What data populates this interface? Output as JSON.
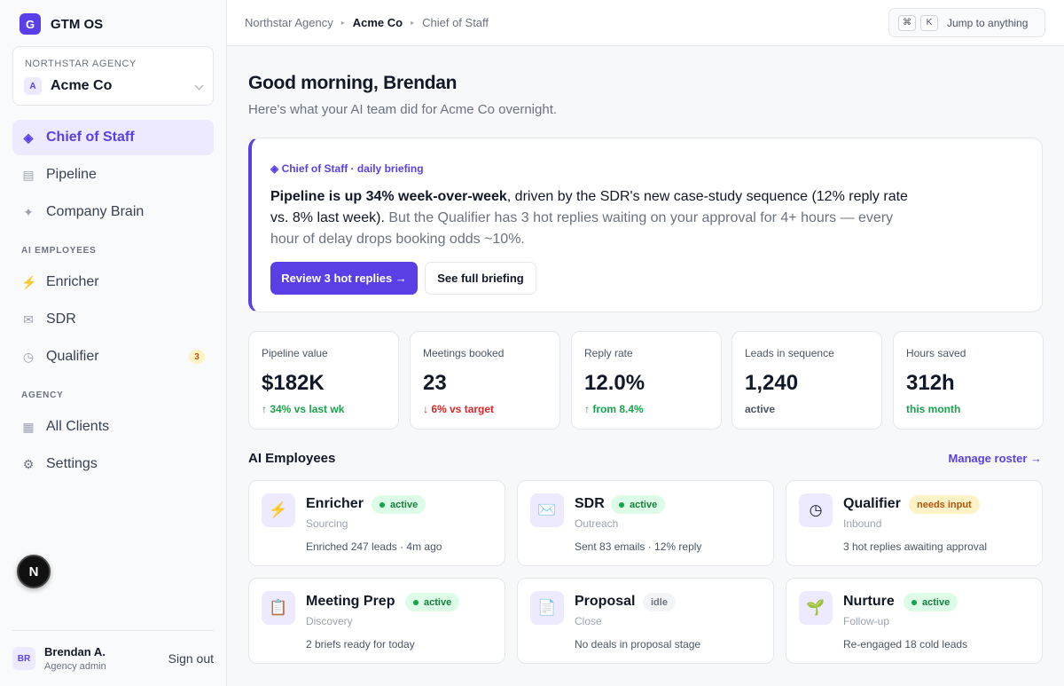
{
  "sidebar": {
    "logo_letter": "G",
    "app_name": "GTM OS",
    "client": {
      "org": "NORTHSTAR AGENCY",
      "avatar": "A",
      "name": "Acme Co"
    },
    "nav_primary": [
      {
        "label": "Chief of Staff",
        "icon": "diamond-icon",
        "glyph": "◈",
        "active": true
      },
      {
        "label": "Pipeline",
        "icon": "list-icon",
        "glyph": "▤"
      },
      {
        "label": "Company Brain",
        "icon": "sparkle-icon",
        "glyph": "✦"
      }
    ],
    "section_ai": "AI EMPLOYEES",
    "nav_ai": [
      {
        "label": "Enricher",
        "icon": "lightning-icon",
        "glyph": "⚡"
      },
      {
        "label": "SDR",
        "icon": "envelope-icon",
        "glyph": "✉"
      },
      {
        "label": "Qualifier",
        "icon": "clock-icon",
        "glyph": "◷",
        "badge": "3"
      }
    ],
    "section_agency": "AGENCY",
    "nav_agency": [
      {
        "label": "All Clients",
        "icon": "grid-icon",
        "glyph": "▦"
      },
      {
        "label": "Settings",
        "icon": "gear-icon",
        "glyph": "⚙"
      }
    ],
    "floating_letter": "N",
    "user": {
      "initials": "BR",
      "name": "Brendan A.",
      "role": "Agency admin",
      "signout": "Sign out"
    }
  },
  "header": {
    "breadcrumbs": [
      "Northstar Agency",
      "Acme Co",
      "Chief of Staff"
    ],
    "jump": {
      "key1": "⌘",
      "key2": "K",
      "label": "Jump to anything"
    }
  },
  "main": {
    "greeting": "Good morning, Brendan",
    "subgreeting": "Here's what your AI team did for Acme Co overnight.",
    "briefing": {
      "tag": "◈ Chief of Staff · daily briefing",
      "headline": "Pipeline is up 34% week-over-week",
      "text_mid": ", driven by the SDR's new case-study sequence (12% reply rate vs. 8% last week).",
      "text_muted": " But the Qualifier has 3 hot replies waiting on your approval for 4+ hours — every hour of delay drops booking odds ~10%.",
      "primary_button": "Review 3 hot replies →",
      "secondary_button": "See full briefing"
    },
    "stats": [
      {
        "label": "Pipeline value",
        "value": "$182K",
        "delta": "↑ 34% vs last wk",
        "tone": "pos"
      },
      {
        "label": "Meetings booked",
        "value": "23",
        "delta": "↓ 6% vs target",
        "tone": "neg"
      },
      {
        "label": "Reply rate",
        "value": "12.0%",
        "delta": "↑ from 8.4%",
        "tone": "pos"
      },
      {
        "label": "Leads in sequence",
        "value": "1,240",
        "delta": "active",
        "tone": "neu"
      },
      {
        "label": "Hours saved",
        "value": "312h",
        "delta": "this month",
        "tone": "pos"
      }
    ],
    "employees_title": "AI Employees",
    "manage_link": "Manage roster →",
    "employees": [
      {
        "name": "Enricher",
        "role": "Sourcing",
        "detail": "Enriched 247 leads · 4m ago",
        "status": "active",
        "status_kind": "active",
        "icon": "lightning-icon",
        "glyph": "⚡"
      },
      {
        "name": "SDR",
        "role": "Outreach",
        "detail": "Sent 83 emails · 12% reply",
        "status": "active",
        "status_kind": "active",
        "icon": "envelope-icon",
        "glyph": "✉️"
      },
      {
        "name": "Qualifier",
        "role": "Inbound",
        "detail": "3 hot replies awaiting approval",
        "status": "needs input",
        "status_kind": "needs",
        "icon": "clock-icon",
        "glyph": "◷"
      },
      {
        "name": "Meeting Prep",
        "role": "Discovery",
        "detail": "2 briefs ready for today",
        "status": "active",
        "status_kind": "active",
        "icon": "clipboard-icon",
        "glyph": "📋"
      },
      {
        "name": "Proposal",
        "role": "Close",
        "detail": "No deals in proposal stage",
        "status": "idle",
        "status_kind": "idle",
        "icon": "document-icon",
        "glyph": "📄"
      },
      {
        "name": "Nurture",
        "role": "Follow-up",
        "detail": "Re-engaged 18 cold leads",
        "status": "active",
        "status_kind": "active",
        "icon": "seedling-icon",
        "glyph": "🌱"
      }
    ]
  },
  "colors": {
    "accent": "#5b3fe6",
    "positive": "#16a34a",
    "negative": "#dc2626",
    "warning": "#b45309"
  }
}
